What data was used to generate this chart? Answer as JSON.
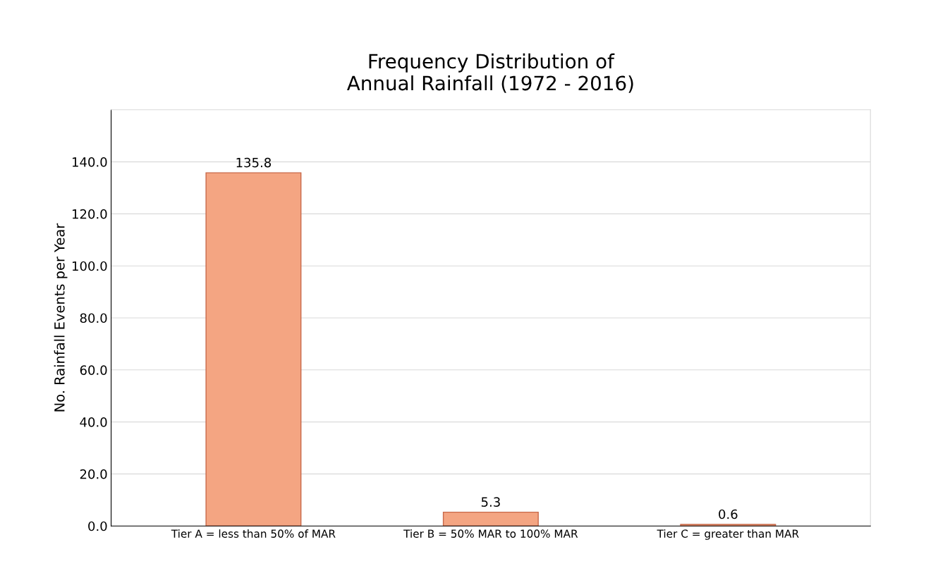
{
  "chart_data": {
    "type": "bar",
    "title": "Frequency Distribution of\nAnnual Rainfall (1972 - 2016)",
    "ylabel": "No. Rainfall Events per Year",
    "categories": [
      "Tier A = less than 50% of MAR",
      "Tier B = 50% MAR to 100% MAR",
      "Tier C = greater than MAR"
    ],
    "values": [
      135.8,
      5.3,
      0.6
    ],
    "color": "#f4a582",
    "data_labels": true,
    "ylim": [
      0,
      160
    ],
    "yticks": [
      {
        "value": 0,
        "label": "0.0"
      },
      {
        "value": 20,
        "label": "20.0"
      },
      {
        "value": 40,
        "label": "40.0"
      },
      {
        "value": 60,
        "label": "60.0"
      },
      {
        "value": 80,
        "label": "80.0"
      },
      {
        "value": 100,
        "label": "100.0"
      },
      {
        "value": 120,
        "label": "120.0"
      },
      {
        "value": 140,
        "label": "140.0"
      }
    ],
    "grid": "y"
  }
}
